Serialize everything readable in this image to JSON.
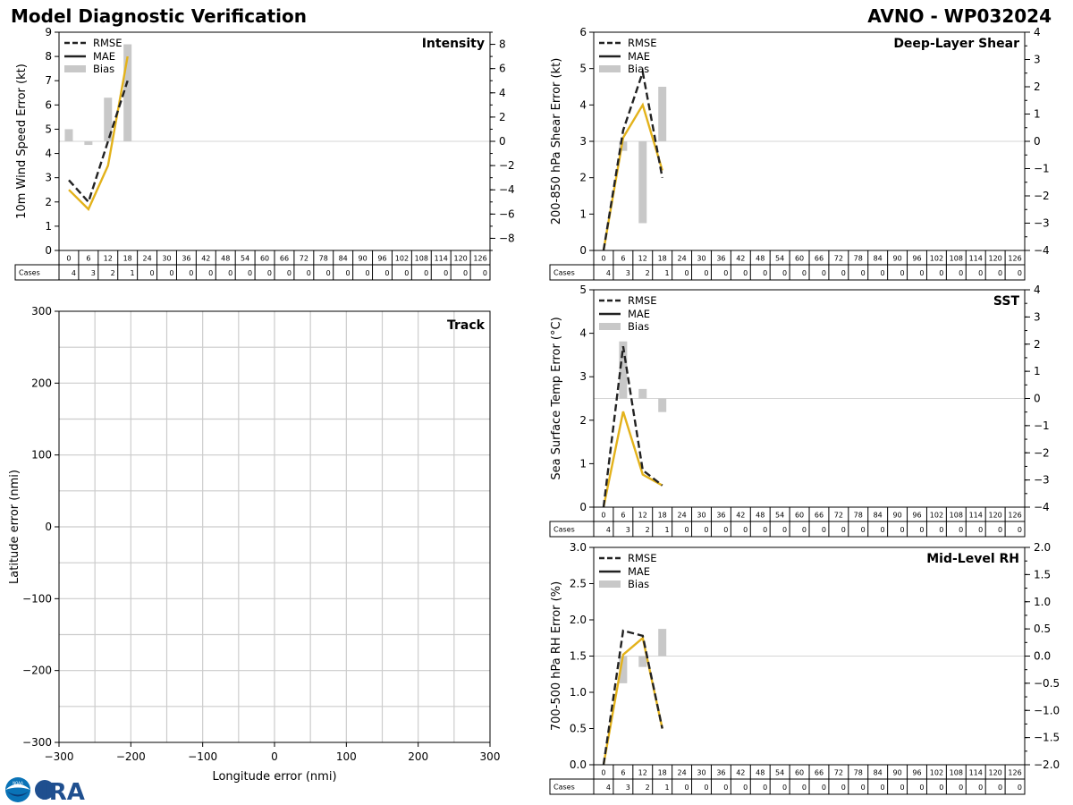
{
  "header": {
    "title_left": "Model Diagnostic Verification",
    "title_right": "AVNO - WP032024"
  },
  "legend_labels": [
    "RMSE",
    "MAE",
    "Bias"
  ],
  "cases_label": "Cases",
  "lead_hours": [
    "0",
    "6",
    "12",
    "18",
    "24",
    "30",
    "36",
    "42",
    "48",
    "54",
    "60",
    "66",
    "72",
    "78",
    "84",
    "90",
    "96",
    "102",
    "108",
    "114",
    "120",
    "126"
  ],
  "cases": [
    "4",
    "3",
    "2",
    "1",
    "0",
    "0",
    "0",
    "0",
    "0",
    "0",
    "0",
    "0",
    "0",
    "0",
    "0",
    "0",
    "0",
    "0",
    "0",
    "0",
    "0",
    "0"
  ],
  "colors": {
    "rmse": "#222222",
    "mae": "#e3b21b",
    "bias": "#c8c8c8",
    "grid": "#cccccc",
    "zero": "#d5d5d5"
  },
  "logo": {
    "noaa_text": "NOAA",
    "cira_text": "CIRA"
  },
  "chart_data": [
    {
      "type": "line",
      "id": "intensity",
      "title": "Intensity",
      "ylabel": "10m Wind Speed Error (kt)",
      "ylim": [
        0,
        9
      ],
      "yticks": [
        "0",
        "1",
        "2",
        "3",
        "4",
        "5",
        "6",
        "7",
        "8",
        "9"
      ],
      "y2lim": [
        -9,
        9
      ],
      "y2ticks": [
        "−8",
        "−6",
        "−4",
        "−2",
        "0",
        "2",
        "4",
        "6",
        "8"
      ],
      "y2tick_values": [
        -8,
        -6,
        -4,
        -2,
        0,
        2,
        4,
        6,
        8
      ],
      "x": [
        0,
        6,
        12,
        18
      ],
      "series": [
        {
          "name": "RMSE",
          "values": [
            2.9,
            2.0,
            4.5,
            7.0
          ]
        },
        {
          "name": "MAE",
          "values": [
            2.5,
            1.7,
            3.5,
            8.0
          ]
        }
      ],
      "bias": [
        1.0,
        -0.3,
        3.6,
        8.0
      ]
    },
    {
      "type": "line",
      "id": "shear",
      "title": "Deep-Layer Shear",
      "ylabel": "200-850 hPa Shear Error (kt)",
      "ylim": [
        0,
        6
      ],
      "yticks": [
        "0",
        "1",
        "2",
        "3",
        "4",
        "5",
        "6"
      ],
      "y2lim": [
        -4,
        4
      ],
      "y2ticks": [
        "−4",
        "−3",
        "−2",
        "−1",
        "0",
        "1",
        "2",
        "3",
        "4"
      ],
      "y2tick_values": [
        -4,
        -3,
        -2,
        -1,
        0,
        1,
        2,
        3,
        4
      ],
      "x": [
        0,
        6,
        12,
        18
      ],
      "series": [
        {
          "name": "RMSE",
          "values": [
            0.0,
            3.3,
            4.9,
            2.0
          ]
        },
        {
          "name": "MAE",
          "values": [
            0.0,
            3.1,
            4.0,
            2.2
          ]
        }
      ],
      "bias": [
        0.0,
        -0.35,
        -3.0,
        2.0
      ]
    },
    {
      "type": "line",
      "id": "sst",
      "title": "SST",
      "ylabel": "Sea Surface Temp Error (°C)",
      "ylim": [
        0,
        5
      ],
      "yticks": [
        "0",
        "1",
        "2",
        "3",
        "4",
        "5"
      ],
      "y2lim": [
        -4,
        4
      ],
      "y2ticks": [
        "−4",
        "−3",
        "−2",
        "−1",
        "0",
        "1",
        "2",
        "3",
        "4"
      ],
      "y2tick_values": [
        -4,
        -3,
        -2,
        -1,
        0,
        1,
        2,
        3,
        4
      ],
      "x": [
        0,
        6,
        12,
        18
      ],
      "series": [
        {
          "name": "RMSE",
          "values": [
            0.0,
            3.7,
            0.85,
            0.5
          ]
        },
        {
          "name": "MAE",
          "values": [
            0.0,
            2.2,
            0.75,
            0.5
          ]
        }
      ],
      "bias": [
        0.0,
        2.1,
        0.35,
        -0.5
      ]
    },
    {
      "type": "line",
      "id": "rh",
      "title": "Mid-Level RH",
      "ylabel": "700-500 hPa RH Error (%)",
      "ylim": [
        0,
        3
      ],
      "yticks": [
        "0.0",
        "0.5",
        "1.0",
        "1.5",
        "2.0",
        "2.5",
        "3.0"
      ],
      "y2lim": [
        -2,
        2
      ],
      "y2ticks": [
        "−2.0",
        "−1.5",
        "−1.0",
        "−0.5",
        "0.0",
        "0.5",
        "1.0",
        "1.5",
        "2.0"
      ],
      "y2tick_values": [
        -2,
        -1.5,
        -1,
        -0.5,
        0,
        0.5,
        1,
        1.5,
        2
      ],
      "x": [
        0,
        6,
        12,
        18
      ],
      "series": [
        {
          "name": "RMSE",
          "values": [
            0.0,
            1.85,
            1.78,
            0.5
          ]
        },
        {
          "name": "MAE",
          "values": [
            0.0,
            1.52,
            1.75,
            0.5
          ]
        }
      ],
      "bias": [
        0.0,
        -0.5,
        -0.2,
        0.5
      ]
    },
    {
      "type": "scatter",
      "id": "track",
      "title": "Track",
      "xlabel": "Longitude error (nmi)",
      "ylabel": "Latitude error (nmi)",
      "xlim": [
        -300,
        300
      ],
      "ylim": [
        -300,
        300
      ],
      "xticks": [
        "−300",
        "−200",
        "−100",
        "0",
        "100",
        "200",
        "300"
      ],
      "yticks": [
        "−300",
        "−200",
        "−100",
        "0",
        "100",
        "200",
        "300"
      ],
      "grid_step": 50,
      "points": []
    }
  ]
}
